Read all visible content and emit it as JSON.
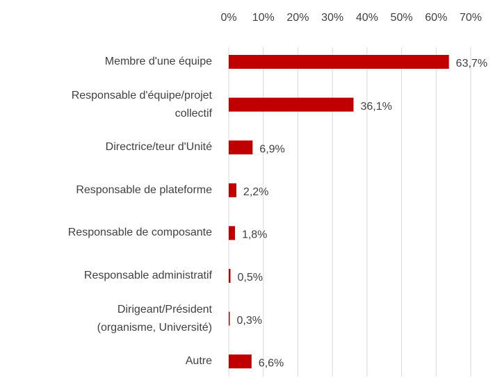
{
  "chart_data": {
    "type": "bar",
    "orientation": "horizontal",
    "categories": [
      "Membre d'une équipe",
      "Responsable d'équipe/projet\ncollectif",
      "Directrice/teur d'Unité",
      "Responsable de plateforme",
      "Responsable de composante",
      "Responsable administratif",
      "Dirigeant/Président\n(organisme, Université)",
      "Autre"
    ],
    "values": [
      63.7,
      36.1,
      6.9,
      2.2,
      1.8,
      0.5,
      0.3,
      6.6
    ],
    "value_labels": [
      "63,7%",
      "36,1%",
      "6,9%",
      "2,2%",
      "1,8%",
      "0,5%",
      "0,3%",
      "6,6%"
    ],
    "color": "#c00000",
    "xlim": [
      0,
      70
    ],
    "xticks": [
      {
        "value": 0,
        "label": "0%"
      },
      {
        "value": 10,
        "label": "10%"
      },
      {
        "value": 20,
        "label": "20%"
      },
      {
        "value": 30,
        "label": "30%"
      },
      {
        "value": 40,
        "label": "40%"
      },
      {
        "value": 50,
        "label": "50%"
      },
      {
        "value": 60,
        "label": "60%"
      },
      {
        "value": 70,
        "label": "70%"
      }
    ],
    "grid": true
  }
}
